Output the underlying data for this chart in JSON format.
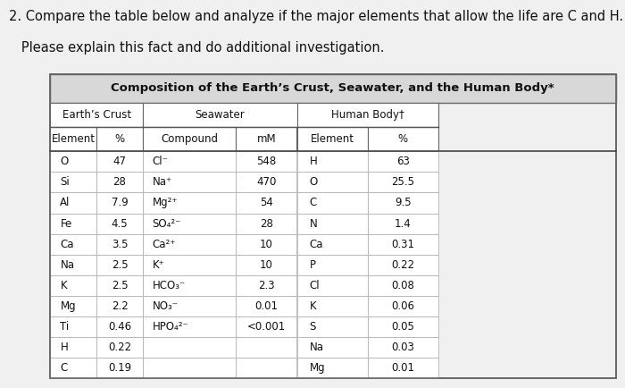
{
  "title_line1": "2. Compare the table below and analyze if the major elements that allow the life are C and H.",
  "title_line2": "   Please explain this fact and do additional investigation.",
  "table_title": "Composition of the Earth’s Crust, Seawater, and the Human Body*",
  "sec_crust": "Earth’s Crust",
  "sec_seawater": "Seawater",
  "sec_human": "Human Body†",
  "col_headers": [
    "Element",
    "%",
    "Compound",
    "mM",
    "Element",
    "%"
  ],
  "crust_data": [
    [
      "O",
      "47"
    ],
    [
      "Si",
      "28"
    ],
    [
      "Al",
      "7.9"
    ],
    [
      "Fe",
      "4.5"
    ],
    [
      "Ca",
      "3.5"
    ],
    [
      "Na",
      "2.5"
    ],
    [
      "K",
      "2.5"
    ],
    [
      "Mg",
      "2.2"
    ],
    [
      "Ti",
      "0.46"
    ],
    [
      "H",
      "0.22"
    ],
    [
      "C",
      "0.19"
    ]
  ],
  "seawater_data": [
    [
      "Cl⁻",
      "548"
    ],
    [
      "Na⁺",
      "470"
    ],
    [
      "Mg²⁺",
      "54"
    ],
    [
      "SO₄²⁻",
      "28"
    ],
    [
      "Ca²⁺",
      "10"
    ],
    [
      "K⁺",
      "10"
    ],
    [
      "HCO₃⁻",
      "2.3"
    ],
    [
      "NO₃⁻",
      "0.01"
    ],
    [
      "HPO₄²⁻",
      "<0.001"
    ],
    [
      "",
      ""
    ],
    [
      "",
      ""
    ]
  ],
  "human_data": [
    [
      "H",
      "63"
    ],
    [
      "O",
      "25.5"
    ],
    [
      "C",
      "9.5"
    ],
    [
      "N",
      "1.4"
    ],
    [
      "Ca",
      "0.31"
    ],
    [
      "P",
      "0.22"
    ],
    [
      "Cl",
      "0.08"
    ],
    [
      "K",
      "0.06"
    ],
    [
      "S",
      "0.05"
    ],
    [
      "Na",
      "0.03"
    ],
    [
      "Mg",
      "0.01"
    ]
  ],
  "bg_color": "#f0f0f0",
  "cell_bg": "#ffffff",
  "title_row_bg": "#d8d8d8",
  "outer_border": "#666666",
  "inner_border": "#aaaaaa",
  "text_color": "#111111",
  "title_fontsize": 10.5,
  "table_title_fontsize": 9.5,
  "header_fontsize": 8.5,
  "cell_fontsize": 8.5
}
